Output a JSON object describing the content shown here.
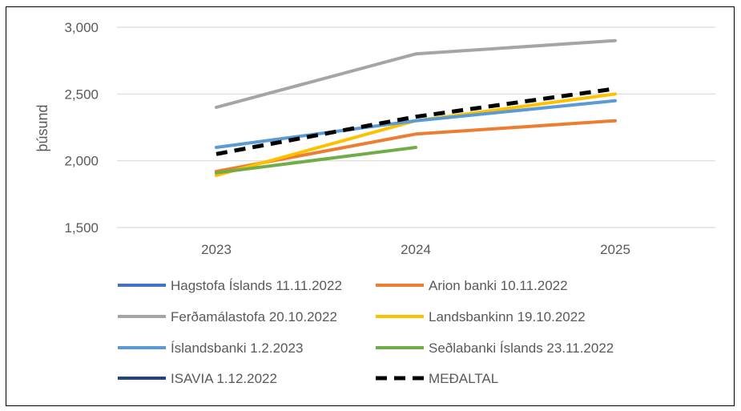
{
  "chart_data": {
    "type": "line",
    "title": "",
    "xlabel": "",
    "ylabel": "þúsund",
    "categories": [
      "2023",
      "2024",
      "2025"
    ],
    "y_ticks": [
      "1,500",
      "2,000",
      "2,500",
      "3,000"
    ],
    "y_tick_values": [
      1500,
      2000,
      2500,
      3000
    ],
    "ylim": [
      1500,
      3000
    ],
    "grid": "horizontal",
    "legend_position": "bottom",
    "series": [
      {
        "name": "Hagstofa Íslands 11.11.2022",
        "color": "#4472C4",
        "style": "solid",
        "values": [
          null,
          null,
          null
        ]
      },
      {
        "name": "Arion banki 10.11.2022",
        "color": "#ED7D31",
        "style": "solid",
        "values": [
          1920,
          2200,
          2300
        ]
      },
      {
        "name": "Ferðamálastofa 20.10.2022",
        "color": "#A5A5A5",
        "style": "solid",
        "values": [
          2400,
          2800,
          2900
        ]
      },
      {
        "name": "Landsbankinn 19.10.2022",
        "color": "#FFC000",
        "style": "solid",
        "values": [
          1890,
          2300,
          2500
        ]
      },
      {
        "name": "Íslandsbanki 1.2.2023",
        "color": "#5B9BD5",
        "style": "solid",
        "values": [
          2100,
          2300,
          2450
        ]
      },
      {
        "name": "Seðlabanki Íslands 23.11.2022",
        "color": "#70AD47",
        "style": "solid",
        "values": [
          1910,
          2100,
          null
        ]
      },
      {
        "name": "ISAVIA 1.12.2022",
        "color": "#264478",
        "style": "solid",
        "values": [
          null,
          null,
          null
        ]
      },
      {
        "name": "MEÐALTAL",
        "color": "#000000",
        "style": "dashed",
        "values": [
          2050,
          2330,
          2540
        ]
      }
    ]
  }
}
